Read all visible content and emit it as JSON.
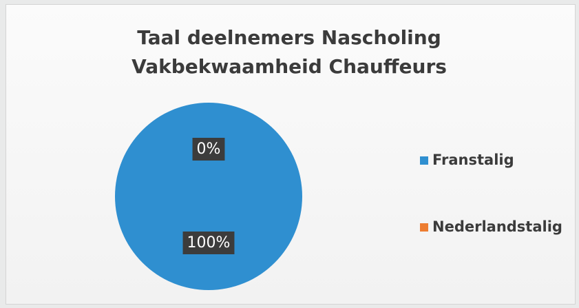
{
  "chart_data": {
    "type": "pie",
    "title": "Taal deelnemers Nascholing Vakbekwaamheid Chauffeurs",
    "categories": [
      "Franstalig",
      "Nederlandstalig"
    ],
    "values": [
      100,
      0
    ],
    "value_labels": [
      "100%",
      "0%"
    ],
    "colors": [
      "#2f8fd0",
      "#ed7d31"
    ],
    "legend": "right"
  }
}
